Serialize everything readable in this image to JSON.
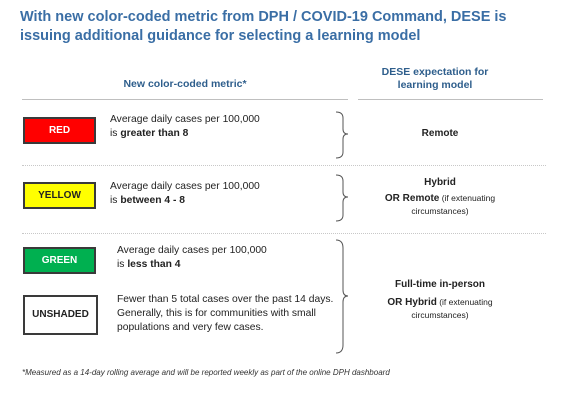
{
  "title": "With new color-coded metric from DPH / COVID-19 Command, DESE is issuing additional guidance for selecting a learning model",
  "headers": {
    "left": "New color-coded metric*",
    "right": "DESE expectation for learning model"
  },
  "rows": {
    "red": {
      "badge": "RED",
      "badge_color": "#ff0000",
      "desc_pre": "Average daily cases per 100,000 is ",
      "desc_bold": "greater than 8",
      "expect_bold": "Remote"
    },
    "yellow": {
      "badge": "YELLOW",
      "badge_color": "#ffff00",
      "desc_pre": "Average daily cases per 100,000 is ",
      "desc_bold": "between 4 - 8",
      "expect_bold": "Hybrid",
      "expect_alt_bold": "OR Remote",
      "expect_alt_note": " (if extenuating circumstances)"
    },
    "green": {
      "badge": "GREEN",
      "badge_color": "#00b050",
      "desc_pre": "Average daily cases per 100,000 is ",
      "desc_bold": "less than 4"
    },
    "unshaded": {
      "badge": "UNSHADED",
      "badge_color": "#ffffff",
      "desc": "Fewer than 5 total cases over the past 14 days. Generally, this is for communities with small populations and very few cases."
    },
    "green_unshaded_expect": {
      "bold": "Full-time in-person",
      "alt_bold": "OR Hybrid",
      "alt_note": " (if extenuating circumstances)"
    }
  },
  "footnote": "*Measured as a 14-day rolling average and will be reported weekly as part of the online DPH dashboard"
}
